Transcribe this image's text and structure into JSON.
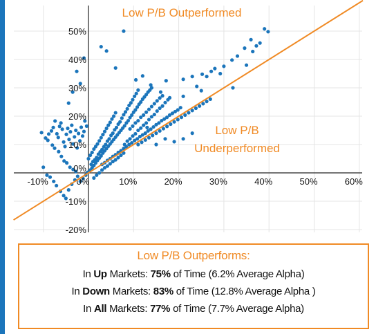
{
  "chart_data": {
    "type": "scatter",
    "title": "",
    "xlabel": "",
    "ylabel": "",
    "xlim": [
      -0.12,
      0.6
    ],
    "ylim": [
      -0.2,
      0.55
    ],
    "xticks": [
      "-10%",
      "0%",
      "10%",
      "20%",
      "30%",
      "40%",
      "50%",
      "60%"
    ],
    "yticks": [
      "-20%",
      "-10%",
      "0%",
      "10%",
      "20%",
      "30%",
      "40%",
      "50%"
    ],
    "grid": true,
    "point_color": "#1b75bb",
    "line_color": "#f08a24",
    "reference_line": "y = x",
    "annotations": {
      "above": "Low P/B Outperformed",
      "below_line1": "Low P/B",
      "below_line2": "Underperformed"
    },
    "points": [
      [
        -0.104,
        0.142
      ],
      [
        -0.095,
        0.123
      ],
      [
        -0.09,
        0.115
      ],
      [
        -0.088,
        0.137
      ],
      [
        -0.082,
        0.148
      ],
      [
        -0.078,
        0.16
      ],
      [
        -0.074,
        0.183
      ],
      [
        -0.07,
        0.138
      ],
      [
        -0.067,
        0.125
      ],
      [
        -0.064,
        0.164
      ],
      [
        -0.061,
        0.176
      ],
      [
        -0.058,
        0.154
      ],
      [
        -0.055,
        0.109
      ],
      [
        -0.052,
        0.093
      ],
      [
        -0.049,
        0.136
      ],
      [
        -0.046,
        0.157
      ],
      [
        -0.043,
        0.118
      ],
      [
        -0.04,
        0.145
      ],
      [
        -0.037,
        0.168
      ],
      [
        -0.034,
        0.102
      ],
      [
        -0.031,
        0.127
      ],
      [
        -0.028,
        0.15
      ],
      [
        -0.025,
        0.088
      ],
      [
        -0.022,
        0.139
      ],
      [
        -0.019,
        0.113
      ],
      [
        -0.016,
        0.161
      ],
      [
        -0.013,
        0.13
      ],
      [
        -0.01,
        0.146
      ],
      [
        -0.08,
        0.098
      ],
      [
        -0.075,
        0.087
      ],
      [
        -0.066,
        0.075
      ],
      [
        -0.044,
        0.246
      ],
      [
        -0.035,
        0.285
      ],
      [
        -0.026,
        0.358
      ],
      [
        -0.018,
        0.315
      ],
      [
        -0.01,
        0.405
      ],
      [
        -0.008,
        0.183
      ],
      [
        -0.004,
        0.165
      ],
      [
        -0.06,
        0.058
      ],
      [
        -0.054,
        0.042
      ],
      [
        -0.048,
        0.035
      ],
      [
        -0.041,
        0.02
      ],
      [
        -0.034,
        0.012
      ],
      [
        -0.028,
        0.005
      ],
      [
        -0.1,
        0.02
      ],
      [
        -0.092,
        -0.008
      ],
      [
        -0.085,
        -0.015
      ],
      [
        -0.077,
        -0.03
      ],
      [
        -0.071,
        -0.045
      ],
      [
        -0.062,
        -0.065
      ],
      [
        -0.055,
        -0.08
      ],
      [
        -0.05,
        -0.09
      ],
      [
        -0.044,
        -0.06
      ],
      [
        -0.037,
        -0.04
      ],
      [
        -0.03,
        -0.025
      ],
      [
        -0.024,
        -0.012
      ],
      [
        -0.018,
        -0.03
      ],
      [
        -0.012,
        -0.02
      ],
      [
        -0.006,
        -0.008
      ],
      [
        -0.002,
        0.002
      ],
      [
        0.004,
        0.01
      ],
      [
        0.008,
        0.018
      ],
      [
        0.012,
        0.026
      ],
      [
        0.016,
        0.035
      ],
      [
        0.02,
        0.044
      ],
      [
        0.024,
        0.052
      ],
      [
        0.028,
        0.06
      ],
      [
        0.032,
        0.07
      ],
      [
        0.036,
        0.078
      ],
      [
        0.04,
        0.086
      ],
      [
        0.044,
        0.094
      ],
      [
        0.048,
        0.102
      ],
      [
        0.052,
        0.11
      ],
      [
        0.056,
        0.118
      ],
      [
        0.06,
        0.126
      ],
      [
        0.064,
        0.134
      ],
      [
        0.068,
        0.142
      ],
      [
        0.072,
        0.15
      ],
      [
        0.076,
        0.158
      ],
      [
        0.08,
        0.166
      ],
      [
        0.0,
        0.05
      ],
      [
        0.004,
        0.062
      ],
      [
        0.008,
        0.072
      ],
      [
        0.012,
        0.084
      ],
      [
        0.016,
        0.093
      ],
      [
        0.02,
        0.102
      ],
      [
        0.024,
        0.113
      ],
      [
        0.028,
        0.124
      ],
      [
        0.032,
        0.135
      ],
      [
        0.036,
        0.146
      ],
      [
        0.04,
        0.157
      ],
      [
        0.044,
        0.168
      ],
      [
        0.048,
        0.178
      ],
      [
        0.052,
        0.19
      ],
      [
        0.056,
        0.2
      ],
      [
        0.06,
        0.212
      ],
      [
        0.006,
        0.03
      ],
      [
        0.01,
        0.04
      ],
      [
        0.014,
        0.046
      ],
      [
        0.018,
        0.054
      ],
      [
        0.022,
        0.066
      ],
      [
        0.026,
        0.074
      ],
      [
        0.03,
        0.082
      ],
      [
        0.034,
        0.092
      ],
      [
        0.038,
        0.1
      ],
      [
        0.042,
        0.112
      ],
      [
        0.046,
        0.12
      ],
      [
        0.05,
        0.132
      ],
      [
        0.054,
        0.14
      ],
      [
        0.058,
        0.152
      ],
      [
        0.062,
        0.16
      ],
      [
        0.066,
        0.172
      ],
      [
        0.07,
        0.18
      ],
      [
        0.074,
        0.193
      ],
      [
        0.078,
        0.205
      ],
      [
        0.082,
        0.215
      ],
      [
        0.086,
        0.226
      ],
      [
        0.09,
        0.238
      ],
      [
        0.094,
        0.247
      ],
      [
        0.098,
        0.258
      ],
      [
        0.102,
        0.27
      ],
      [
        0.106,
        0.28
      ],
      [
        0.11,
        0.292
      ],
      [
        0.084,
        0.176
      ],
      [
        0.088,
        0.184
      ],
      [
        0.092,
        0.195
      ],
      [
        0.096,
        0.204
      ],
      [
        0.1,
        0.214
      ],
      [
        0.104,
        0.222
      ],
      [
        0.108,
        0.232
      ],
      [
        0.112,
        0.242
      ],
      [
        0.116,
        0.25
      ],
      [
        0.12,
        0.26
      ],
      [
        0.124,
        0.268
      ],
      [
        0.128,
        0.276
      ],
      [
        0.132,
        0.285
      ],
      [
        0.136,
        0.292
      ],
      [
        0.14,
        0.3
      ],
      [
        0.092,
        0.155
      ],
      [
        0.098,
        0.165
      ],
      [
        0.104,
        0.176
      ],
      [
        0.11,
        0.184
      ],
      [
        0.116,
        0.196
      ],
      [
        0.122,
        0.204
      ],
      [
        0.128,
        0.214
      ],
      [
        0.134,
        0.224
      ],
      [
        0.14,
        0.234
      ],
      [
        0.146,
        0.244
      ],
      [
        0.152,
        0.254
      ],
      [
        0.158,
        0.264
      ],
      [
        0.164,
        0.272
      ],
      [
        0.08,
        0.1
      ],
      [
        0.086,
        0.112
      ],
      [
        0.092,
        0.12
      ],
      [
        0.098,
        0.13
      ],
      [
        0.104,
        0.138
      ],
      [
        0.11,
        0.15
      ],
      [
        0.116,
        0.158
      ],
      [
        0.122,
        0.168
      ],
      [
        0.128,
        0.176
      ],
      [
        0.134,
        0.188
      ],
      [
        0.14,
        0.198
      ],
      [
        0.146,
        0.206
      ],
      [
        0.152,
        0.218
      ],
      [
        0.158,
        0.228
      ],
      [
        0.164,
        0.236
      ],
      [
        0.17,
        0.248
      ],
      [
        0.176,
        0.258
      ],
      [
        0.03,
        0.03
      ],
      [
        0.036,
        0.036
      ],
      [
        0.042,
        0.044
      ],
      [
        0.048,
        0.05
      ],
      [
        0.054,
        0.058
      ],
      [
        0.06,
        0.064
      ],
      [
        0.066,
        0.072
      ],
      [
        0.072,
        0.078
      ],
      [
        0.078,
        0.086
      ],
      [
        0.084,
        0.092
      ],
      [
        0.09,
        0.1
      ],
      [
        0.096,
        0.106
      ],
      [
        0.102,
        0.114
      ],
      [
        0.108,
        0.12
      ],
      [
        0.114,
        0.128
      ],
      [
        0.12,
        0.134
      ],
      [
        0.126,
        0.14
      ],
      [
        0.132,
        0.148
      ],
      [
        0.138,
        0.154
      ],
      [
        0.144,
        0.162
      ],
      [
        0.15,
        0.17
      ],
      [
        0.156,
        0.176
      ],
      [
        0.162,
        0.184
      ],
      [
        0.168,
        0.19
      ],
      [
        0.174,
        0.196
      ],
      [
        0.18,
        0.204
      ],
      [
        0.186,
        0.21
      ],
      [
        0.192,
        0.216
      ],
      [
        0.198,
        0.222
      ],
      [
        0.204,
        0.23
      ],
      [
        0.012,
        -0.018
      ],
      [
        0.018,
        -0.008
      ],
      [
        0.024,
        0.0
      ],
      [
        0.03,
        0.01
      ],
      [
        0.036,
        0.018
      ],
      [
        0.042,
        0.024
      ],
      [
        0.048,
        0.032
      ],
      [
        0.054,
        0.04
      ],
      [
        0.06,
        0.046
      ],
      [
        0.066,
        0.054
      ],
      [
        0.072,
        0.062
      ],
      [
        0.078,
        0.07
      ],
      [
        0.11,
        0.1
      ],
      [
        0.118,
        0.108
      ],
      [
        0.126,
        0.116
      ],
      [
        0.134,
        0.124
      ],
      [
        0.142,
        0.132
      ],
      [
        0.15,
        0.14
      ],
      [
        0.158,
        0.148
      ],
      [
        0.166,
        0.156
      ],
      [
        0.174,
        0.164
      ],
      [
        0.182,
        0.172
      ],
      [
        0.19,
        0.18
      ],
      [
        0.198,
        0.188
      ],
      [
        0.206,
        0.196
      ],
      [
        0.214,
        0.204
      ],
      [
        0.222,
        0.212
      ],
      [
        0.23,
        0.22
      ],
      [
        0.238,
        0.228
      ],
      [
        0.246,
        0.236
      ],
      [
        0.254,
        0.244
      ],
      [
        0.262,
        0.252
      ],
      [
        0.27,
        0.26
      ],
      [
        0.078,
        0.5
      ],
      [
        0.028,
        0.445
      ],
      [
        0.04,
        0.43
      ],
      [
        0.06,
        0.37
      ],
      [
        0.105,
        0.328
      ],
      [
        0.12,
        0.342
      ],
      [
        0.138,
        0.31
      ],
      [
        0.172,
        0.325
      ],
      [
        0.21,
        0.33
      ],
      [
        0.23,
        0.34
      ],
      [
        0.252,
        0.348
      ],
      [
        0.262,
        0.34
      ],
      [
        0.272,
        0.358
      ],
      [
        0.28,
        0.368
      ],
      [
        0.292,
        0.35
      ],
      [
        0.3,
        0.376
      ],
      [
        0.318,
        0.398
      ],
      [
        0.33,
        0.412
      ],
      [
        0.346,
        0.44
      ],
      [
        0.35,
        0.38
      ],
      [
        0.36,
        0.47
      ],
      [
        0.364,
        0.428
      ],
      [
        0.372,
        0.448
      ],
      [
        0.38,
        0.458
      ],
      [
        0.39,
        0.508
      ],
      [
        0.398,
        0.498
      ],
      [
        0.21,
        0.27
      ],
      [
        0.24,
        0.305
      ],
      [
        0.25,
        0.29
      ],
      [
        0.32,
        0.3
      ],
      [
        0.18,
        0.265
      ],
      [
        0.16,
        0.285
      ],
      [
        0.13,
        0.16
      ],
      [
        0.15,
        0.1
      ],
      [
        0.17,
        0.12
      ],
      [
        0.19,
        0.11
      ],
      [
        0.21,
        0.12
      ],
      [
        0.23,
        0.14
      ]
    ]
  },
  "summary": {
    "heading": "Low P/B Outperforms:",
    "up": {
      "pre": "In ",
      "market": "Up",
      "mid": " Markets: ",
      "pct": "75%",
      "post": " of Time (6.2% Average Alpha)"
    },
    "down": {
      "pre": "In ",
      "market": "Down",
      "mid": " Markets: ",
      "pct": "83%",
      "post": " of Time (12.8% Average Alpha )"
    },
    "all": {
      "pre": "In ",
      "market": "All",
      "mid": " Markets: ",
      "pct": "77%",
      "post": " of Time (7.7% Average Alpha)"
    }
  }
}
